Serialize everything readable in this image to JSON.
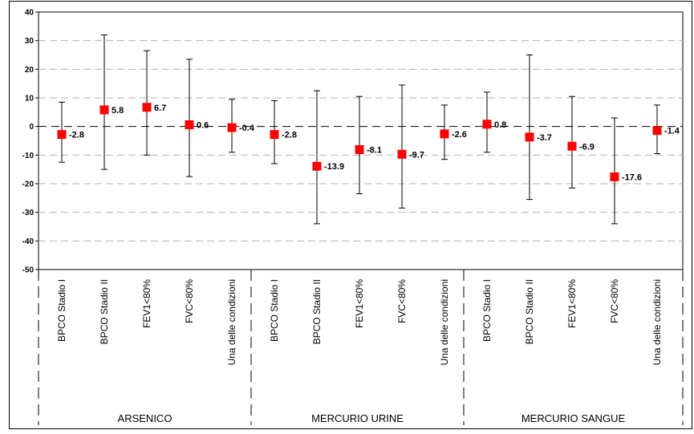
{
  "chart_data": {
    "type": "scatter",
    "ylim": [
      -50,
      40
    ],
    "y_ticks": [
      "40",
      "30",
      "20",
      "10",
      "0",
      "-10",
      "-20",
      "-30",
      "-40",
      "-50"
    ],
    "grid": "horizontal-dashed",
    "marker_color": "#ff0000",
    "groups": [
      {
        "name": "ARSENICO",
        "points": [
          {
            "label": "BPCO Stadio I",
            "value": -2.8,
            "value_text": "-2.8",
            "low": -12.5,
            "high": 8.5
          },
          {
            "label": "BPCO Stadio II",
            "value": 5.8,
            "value_text": "5.8",
            "low": -15,
            "high": 32
          },
          {
            "label": "FEV1<80%",
            "value": 6.7,
            "value_text": "6.7",
            "low": -10,
            "high": 26.5
          },
          {
            "label": "FVC<80%",
            "value": 0.6,
            "value_text": "0.6",
            "low": -17.5,
            "high": 23.5
          },
          {
            "label": "Una delle condizioni",
            "value": -0.4,
            "value_text": "-0.4",
            "low": -9,
            "high": 9.5
          }
        ]
      },
      {
        "name": "MERCURIO URINE",
        "points": [
          {
            "label": "BPCO Stadio I",
            "value": -2.8,
            "value_text": "-2.8",
            "low": -13,
            "high": 9
          },
          {
            "label": "BPCO Stadio II",
            "value": -13.9,
            "value_text": "-13.9",
            "low": -34,
            "high": 12.5
          },
          {
            "label": "FEV1<80%",
            "value": -8.1,
            "value_text": "-8.1",
            "low": -23.5,
            "high": 10.5
          },
          {
            "label": "FVC<80%",
            "value": -9.7,
            "value_text": "-9.7",
            "low": -28.5,
            "high": 14.5
          },
          {
            "label": "Una delle condizioni",
            "value": -2.6,
            "value_text": "-2.6",
            "low": -11.5,
            "high": 7.5
          }
        ]
      },
      {
        "name": "MERCURIO SANGUE",
        "points": [
          {
            "label": "BPCO Stadio I",
            "value": 0.8,
            "value_text": "0.8",
            "low": -9,
            "high": 12
          },
          {
            "label": "BPCO Stadio II",
            "value": -3.7,
            "value_text": "-3.7",
            "low": -25.5,
            "high": 25
          },
          {
            "label": "FEV1<80%",
            "value": -6.9,
            "value_text": "-6.9",
            "low": -21.5,
            "high": 10.5
          },
          {
            "label": "FVC<80%",
            "value": -17.6,
            "value_text": "-17.6",
            "low": -34,
            "high": 3
          },
          {
            "label": "Una delle condizioni",
            "value": -1.4,
            "value_text": "-1.4",
            "low": -9.5,
            "high": 7.5
          }
        ]
      }
    ]
  }
}
